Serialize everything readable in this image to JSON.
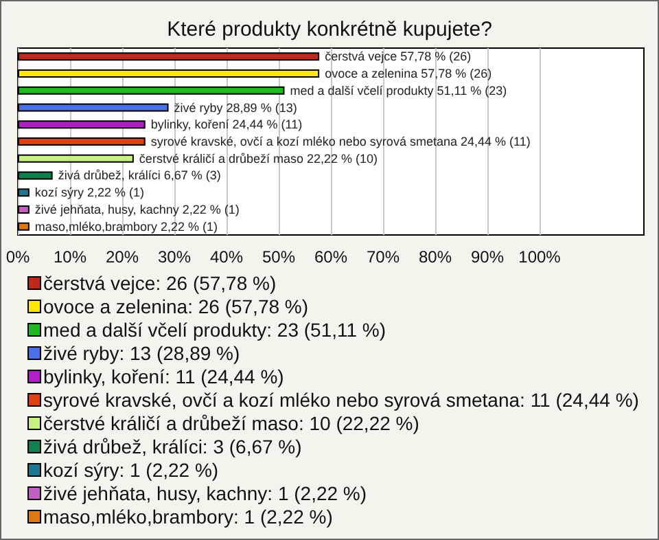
{
  "chart_data": {
    "type": "bar",
    "title": "Které produkty konkrétně kupujete?",
    "orientation": "horizontal",
    "stacked": true,
    "legend": "bottom",
    "grid": "x",
    "tick_labels": "x",
    "categories": [
      null,
      null,
      null,
      null,
      null,
      null,
      null,
      null,
      null,
      null,
      null
    ],
    "xlim": [
      0,
      120
    ],
    "xticks": [
      {
        "value": 0,
        "label": "0%"
      },
      {
        "value": 10,
        "label": "10%"
      },
      {
        "value": 20,
        "label": "20%"
      },
      {
        "value": 30,
        "label": "30%"
      },
      {
        "value": 40,
        "label": "40%"
      },
      {
        "value": 50,
        "label": "50%"
      },
      {
        "value": 60,
        "label": "60%"
      },
      {
        "value": 70,
        "label": "70%"
      },
      {
        "value": 80,
        "label": "80%"
      },
      {
        "value": 90,
        "label": "90%"
      },
      {
        "value": 100,
        "label": "100%"
      }
    ],
    "series": [
      {
        "name": "čerstvá vejce: 26 (57,78 %)",
        "color": "#c0281c",
        "values": [
          57.78,
          null,
          null,
          null,
          null,
          null,
          null,
          null,
          null,
          null,
          null
        ],
        "value_labels": [
          "čerstvá vejce 57,78 % (26)",
          null,
          null,
          null,
          null,
          null,
          null,
          null,
          null,
          null,
          null
        ]
      },
      {
        "name": "ovoce a zelenina: 26 (57,78 %)",
        "color": "#ffe800",
        "values": [
          null,
          57.78,
          null,
          null,
          null,
          null,
          null,
          null,
          null,
          null,
          null
        ],
        "value_labels": [
          null,
          "ovoce a zelenina 57,78 % (26)",
          null,
          null,
          null,
          null,
          null,
          null,
          null,
          null,
          null
        ]
      },
      {
        "name": "med a další včelí produkty: 23 (51,11 %)",
        "color": "#22b822",
        "values": [
          null,
          null,
          51.11,
          null,
          null,
          null,
          null,
          null,
          null,
          null,
          null
        ],
        "value_labels": [
          null,
          null,
          "med a další včelí produkty 51,11 % (23)",
          null,
          null,
          null,
          null,
          null,
          null,
          null,
          null
        ]
      },
      {
        "name": "živé ryby: 13 (28,89 %)",
        "color": "#4a6ee8",
        "values": [
          null,
          null,
          null,
          28.89,
          null,
          null,
          null,
          null,
          null,
          null,
          null
        ],
        "value_labels": [
          null,
          null,
          null,
          "živé ryby 28,89 % (13)",
          null,
          null,
          null,
          null,
          null,
          null,
          null
        ]
      },
      {
        "name": "bylinky, koření: 11 (24,44 %)",
        "color": "#b020c8",
        "values": [
          null,
          null,
          null,
          null,
          24.44,
          null,
          null,
          null,
          null,
          null,
          null
        ],
        "value_labels": [
          null,
          null,
          null,
          null,
          "bylinky, koření 24,44 % (11)",
          null,
          null,
          null,
          null,
          null,
          null
        ]
      },
      {
        "name": "syrové kravské, ovčí a kozí mléko nebo syrová smetana: 11 (24,44 %)",
        "color": "#e04010",
        "values": [
          null,
          null,
          null,
          null,
          null,
          24.44,
          null,
          null,
          null,
          null,
          null
        ],
        "value_labels": [
          null,
          null,
          null,
          null,
          null,
          "syrové kravské, ovčí a kozí mléko nebo syrová smetana 24,44 % (11)",
          null,
          null,
          null,
          null,
          null
        ]
      },
      {
        "name": "čerstvé králičí a drůbeží maso: 10 (22,22 %)",
        "color": "#c8f080",
        "values": [
          null,
          null,
          null,
          null,
          null,
          null,
          22.22,
          null,
          null,
          null,
          null
        ],
        "value_labels": [
          null,
          null,
          null,
          null,
          null,
          null,
          "čerstvé králičí a drůbeží maso 22,22 % (10)",
          null,
          null,
          null,
          null
        ]
      },
      {
        "name": "živá drůbež, králíci: 3 (6,67 %)",
        "color": "#108050",
        "values": [
          null,
          null,
          null,
          null,
          null,
          null,
          null,
          6.67,
          null,
          null,
          null
        ],
        "value_labels": [
          null,
          null,
          null,
          null,
          null,
          null,
          null,
          "živá drůbež, králíci 6,67 % (3)",
          null,
          null,
          null
        ]
      },
      {
        "name": "kozí sýry: 1 (2,22 %)",
        "color": "#207890",
        "values": [
          null,
          null,
          null,
          null,
          null,
          null,
          null,
          null,
          2.22,
          null,
          null
        ],
        "value_labels": [
          null,
          null,
          null,
          null,
          null,
          null,
          null,
          null,
          "kozí sýry 2,22 % (1)",
          null,
          null
        ]
      },
      {
        "name": "živé jehňata, husy, kachny: 1 (2,22 %)",
        "color": "#c060c0",
        "values": [
          null,
          null,
          null,
          null,
          null,
          null,
          null,
          null,
          null,
          2.22,
          null
        ],
        "value_labels": [
          null,
          null,
          null,
          null,
          null,
          null,
          null,
          null,
          null,
          "živé jehňata, husy, kachny 2,22 % (1)",
          null
        ]
      },
      {
        "name": "maso,mléko,brambory: 1 (2,22 %)",
        "color": "#e07810",
        "values": [
          null,
          null,
          null,
          null,
          null,
          null,
          null,
          null,
          null,
          null,
          2.22
        ],
        "value_labels": [
          null,
          null,
          null,
          null,
          null,
          null,
          null,
          null,
          null,
          null,
          "maso,mléko,brambory 2,22 % (1)"
        ]
      }
    ]
  }
}
